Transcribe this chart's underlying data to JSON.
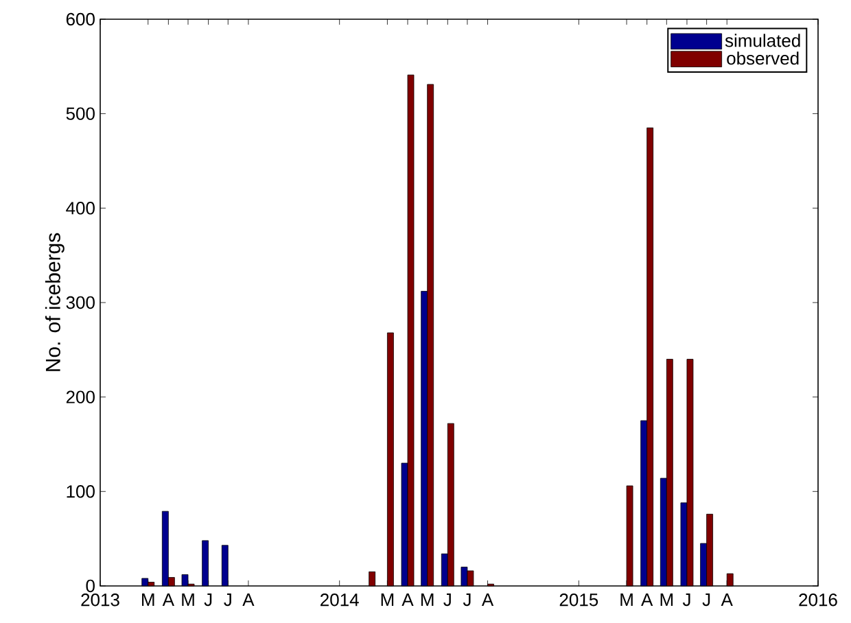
{
  "chart_data": {
    "type": "bar",
    "ylabel": "No. of icebergs",
    "x": [
      "2013-03-15",
      "2013-04-15",
      "2013-05-15",
      "2013-06-15",
      "2013-07-15",
      "2013-08-15",
      "2014-02-15",
      "2014-03-15",
      "2014-04-15",
      "2014-05-15",
      "2014-06-15",
      "2014-07-15",
      "2014-08-15",
      "2015-03-15",
      "2015-04-15",
      "2015-05-15",
      "2015-06-15",
      "2015-07-15",
      "2015-08-15"
    ],
    "series": [
      {
        "name": "simulated",
        "color": "#00008f",
        "values": [
          8,
          79,
          12,
          48,
          43,
          null,
          null,
          null,
          130,
          312,
          34,
          20,
          null,
          null,
          175,
          114,
          88,
          45,
          null
        ]
      },
      {
        "name": "observed",
        "color": "#800000",
        "values": [
          4,
          9,
          2,
          null,
          null,
          null,
          15,
          268,
          541,
          531,
          172,
          16,
          2,
          106,
          485,
          240,
          240,
          76,
          13
        ]
      }
    ],
    "xlim": [
      "2013",
      "2016"
    ],
    "xticks": [
      "2013",
      {
        "value": "2013-03-15",
        "label": "M"
      },
      {
        "value": "2013-04-15",
        "label": "A"
      },
      {
        "value": "2013-05-15",
        "label": "M"
      },
      {
        "value": "2013-06-15",
        "label": "J"
      },
      {
        "value": "2013-07-15",
        "label": "J"
      },
      {
        "value": "2013-08-15",
        "label": "A"
      },
      "2014",
      {
        "value": "2014-03-15",
        "label": "M"
      },
      {
        "value": "2014-04-15",
        "label": "A"
      },
      {
        "value": "2014-05-15",
        "label": "M"
      },
      {
        "value": "2014-06-15",
        "label": "J"
      },
      {
        "value": "2014-07-15",
        "label": "J"
      },
      {
        "value": "2014-08-15",
        "label": "A"
      },
      "2015",
      {
        "value": "2015-03-15",
        "label": "M"
      },
      {
        "value": "2015-04-15",
        "label": "A"
      },
      {
        "value": "2015-05-15",
        "label": "M"
      },
      {
        "value": "2015-06-15",
        "label": "J"
      },
      {
        "value": "2015-07-15",
        "label": "J"
      },
      {
        "value": "2015-08-15",
        "label": "A"
      },
      "2016"
    ],
    "ylim": [
      0,
      600
    ],
    "yticks": [
      0,
      100,
      200,
      300,
      400,
      500,
      600
    ],
    "legend": "top right"
  }
}
